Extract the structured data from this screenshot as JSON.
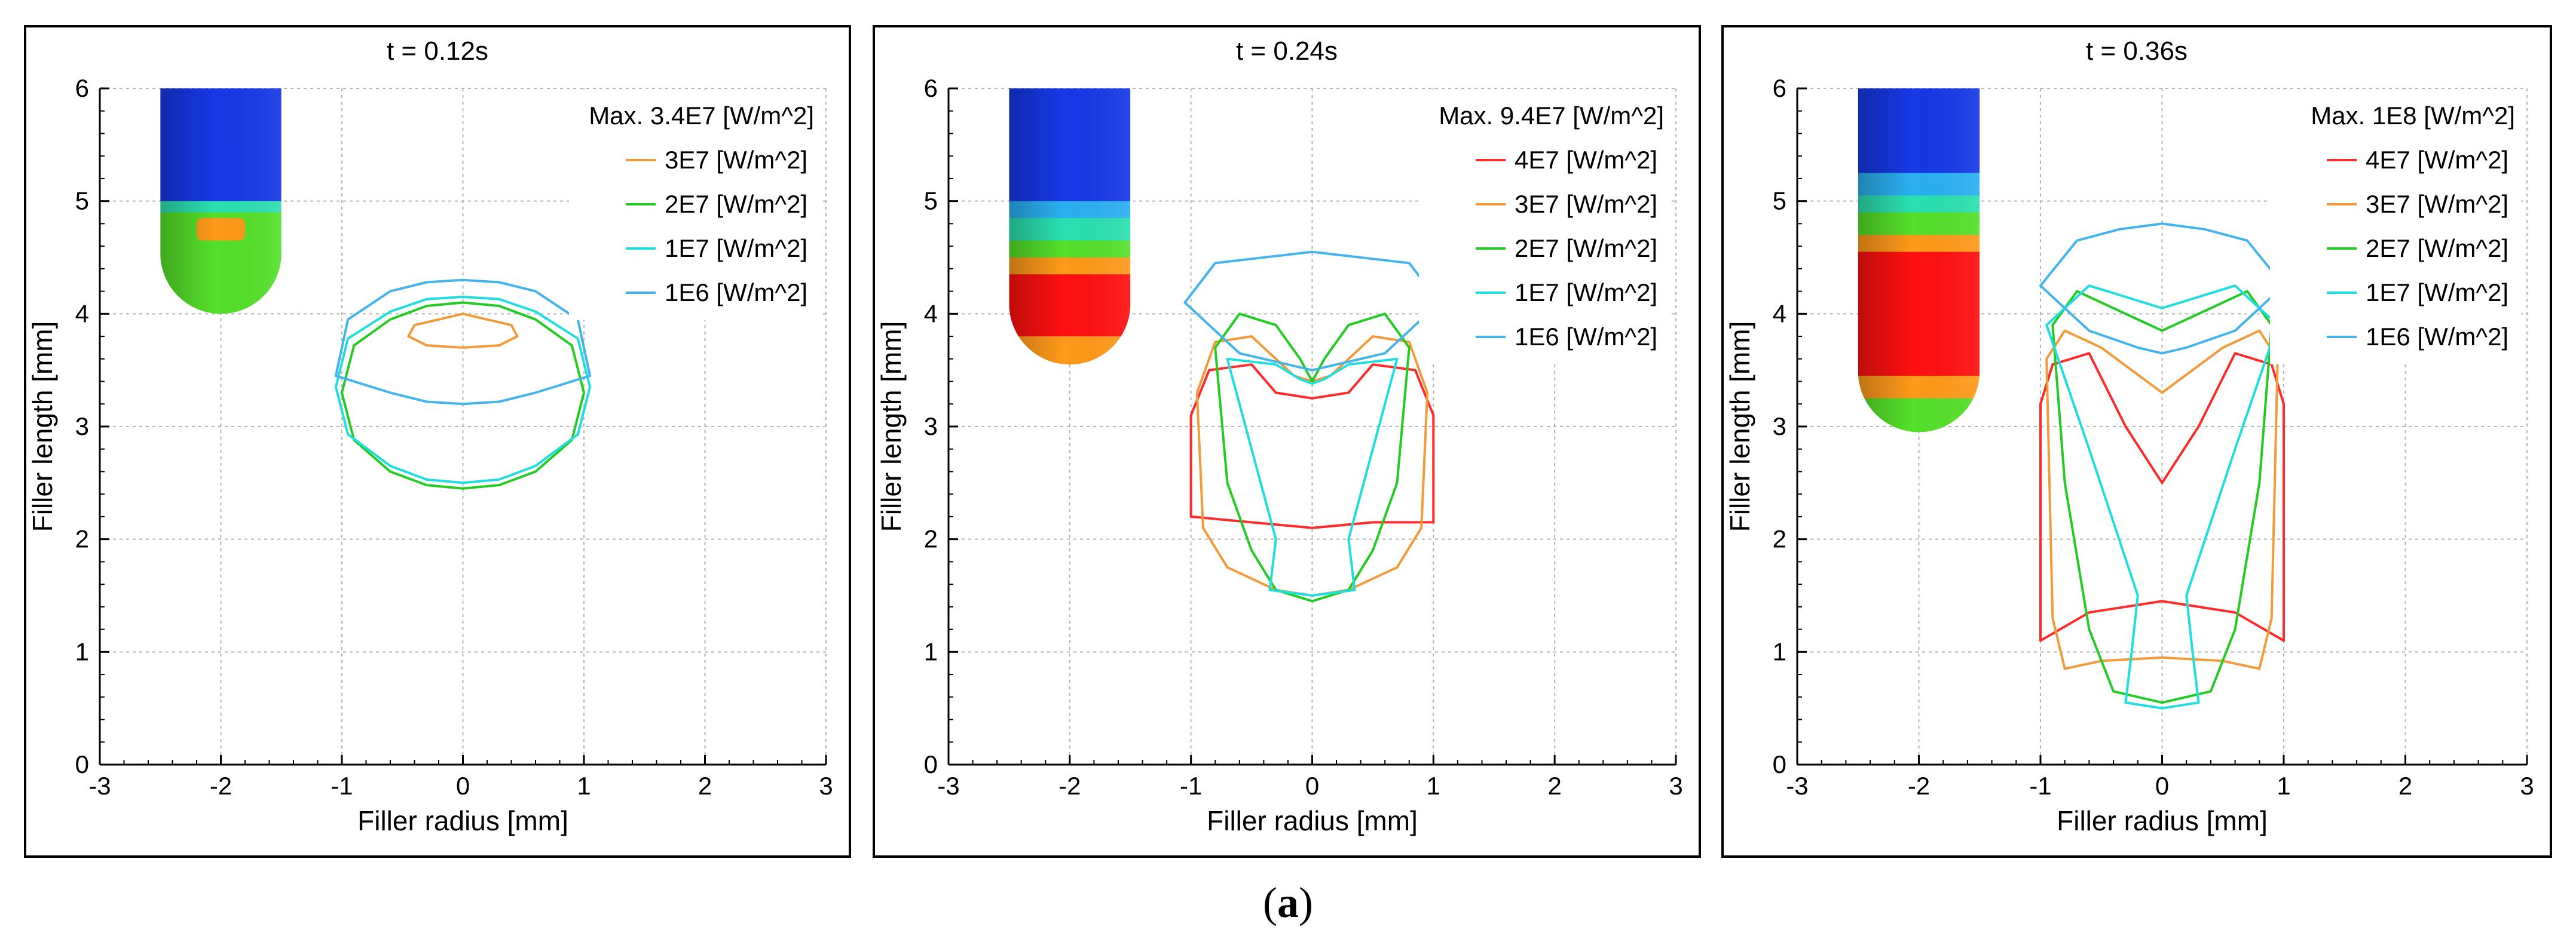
{
  "figure": {
    "caption_open": "(",
    "caption_letter": "a",
    "caption_close": ")"
  },
  "colors": {
    "c4e7": "#ff2a2a",
    "c3e7": "#f39a3a",
    "c2e7": "#22cc22",
    "c1e7": "#20dede",
    "c1e6": "#45b4ec",
    "blue": "#1638e6",
    "green": "#55e02a",
    "orange": "#ff9a1a",
    "red": "#ff1010",
    "teal": "#2ae0b0",
    "cyan": "#2ab0f0",
    "frame": "#000000",
    "grid": "#b4b4b4"
  },
  "chart_data": [
    {
      "type": "line",
      "title": "t = 0.12s",
      "xlabel": "Filler radius [mm]",
      "ylabel": "Filler length [mm]",
      "xlim": [
        -3,
        3
      ],
      "ylim": [
        0,
        6
      ],
      "xticks": [
        -3,
        -2,
        -1,
        0,
        1,
        2,
        3
      ],
      "yticks": [
        0,
        1,
        2,
        3,
        4,
        5,
        6
      ],
      "grid": true,
      "legend_position": "top-right",
      "legend_header": "Max. 3.4E7 [W/m^2]",
      "filler": {
        "x_range": [
          -2.5,
          -1.5
        ],
        "top": 6.0,
        "bottom": 4.0,
        "bands": [
          {
            "color": "blue",
            "y_bottom": 5.0,
            "y_top": 6.0
          },
          {
            "color": "teal",
            "y_bottom": 4.9,
            "y_top": 5.0
          },
          {
            "color": "green",
            "y_bottom": 4.0,
            "y_top": 4.9
          }
        ],
        "hotspots": [
          {
            "color": "orange",
            "x": [
              -2.2,
              -1.8
            ],
            "y_bottom": 4.65,
            "y_top": 4.85
          }
        ]
      },
      "series": [
        {
          "name": "3E7 [W/m^2]",
          "color_key": "c3e7",
          "closed": true,
          "x": [
            -0.45,
            -0.4,
            -0.2,
            0.0,
            0.2,
            0.4,
            0.45,
            0.3,
            0.0,
            -0.3
          ],
          "y": [
            3.8,
            3.9,
            3.95,
            4.0,
            3.95,
            3.9,
            3.8,
            3.72,
            3.7,
            3.72
          ]
        },
        {
          "name": "2E7 [W/m^2]",
          "color_key": "c2e7",
          "closed": true,
          "x": [
            -1.0,
            -0.9,
            -0.6,
            -0.3,
            0.0,
            0.3,
            0.6,
            0.9,
            1.0,
            0.9,
            0.6,
            0.3,
            0.0,
            -0.3,
            -0.6,
            -0.9
          ],
          "y": [
            3.3,
            3.72,
            3.95,
            4.07,
            4.1,
            4.07,
            3.95,
            3.72,
            3.3,
            2.88,
            2.6,
            2.48,
            2.45,
            2.48,
            2.6,
            2.88
          ]
        },
        {
          "name": "1E7 [W/m^2]",
          "color_key": "c1e7",
          "closed": true,
          "x": [
            -1.05,
            -0.95,
            -0.6,
            -0.3,
            0.0,
            0.3,
            0.6,
            0.95,
            1.05,
            0.95,
            0.6,
            0.3,
            0.0,
            -0.3,
            -0.6,
            -0.95
          ],
          "y": [
            3.35,
            3.78,
            4.02,
            4.13,
            4.15,
            4.13,
            4.02,
            3.78,
            3.35,
            2.93,
            2.65,
            2.53,
            2.5,
            2.53,
            2.65,
            2.93
          ]
        },
        {
          "name": "1E6 [W/m^2]",
          "color_key": "c1e6",
          "closed": true,
          "x": [
            -1.05,
            -0.95,
            -0.6,
            -0.3,
            0.0,
            0.3,
            0.6,
            0.95,
            1.05,
            0.6,
            0.3,
            0.0,
            -0.3,
            -0.6
          ],
          "y": [
            3.45,
            3.95,
            4.2,
            4.28,
            4.3,
            4.28,
            4.2,
            3.95,
            3.45,
            3.3,
            3.22,
            3.2,
            3.22,
            3.3
          ]
        }
      ]
    },
    {
      "type": "line",
      "title": "t = 0.24s",
      "xlabel": "Filler radius [mm]",
      "ylabel": "Filler length [mm]",
      "xlim": [
        -3,
        3
      ],
      "ylim": [
        0,
        6
      ],
      "xticks": [
        -3,
        -2,
        -1,
        0,
        1,
        2,
        3
      ],
      "yticks": [
        0,
        1,
        2,
        3,
        4,
        5,
        6
      ],
      "grid": true,
      "legend_position": "top-right",
      "legend_header": "Max. 9.4E7 [W/m^2]",
      "filler": {
        "x_range": [
          -2.5,
          -1.5
        ],
        "top": 6.0,
        "bottom": 3.55,
        "bands": [
          {
            "color": "blue",
            "y_bottom": 5.0,
            "y_top": 6.0
          },
          {
            "color": "cyan",
            "y_bottom": 4.85,
            "y_top": 5.0
          },
          {
            "color": "teal",
            "y_bottom": 4.65,
            "y_top": 4.85
          },
          {
            "color": "green",
            "y_bottom": 4.5,
            "y_top": 4.65
          },
          {
            "color": "orange",
            "y_bottom": 4.35,
            "y_top": 4.5
          },
          {
            "color": "red",
            "y_bottom": 3.8,
            "y_top": 4.35
          },
          {
            "color": "orange",
            "y_bottom": 3.55,
            "y_top": 3.8
          }
        ],
        "hotspots": []
      },
      "series": [
        {
          "name": "4E7 [W/m^2]",
          "color_key": "c4e7",
          "closed": true,
          "x": [
            -1.0,
            -0.85,
            -0.5,
            -0.3,
            0.0,
            0.3,
            0.5,
            0.85,
            1.0,
            1.0,
            0.5,
            0.0,
            -0.5,
            -1.0
          ],
          "y": [
            3.1,
            3.5,
            3.55,
            3.3,
            3.25,
            3.3,
            3.55,
            3.5,
            3.1,
            2.15,
            2.15,
            2.1,
            2.15,
            2.2
          ]
        },
        {
          "name": "3E7 [W/m^2]",
          "color_key": "c3e7",
          "closed": true,
          "x": [
            -0.95,
            -0.8,
            -0.5,
            -0.15,
            0.0,
            0.15,
            0.5,
            0.8,
            0.95,
            0.9,
            0.7,
            0.3,
            0.0,
            -0.3,
            -0.7,
            -0.9
          ],
          "y": [
            3.3,
            3.75,
            3.8,
            3.45,
            3.4,
            3.45,
            3.8,
            3.75,
            3.3,
            2.1,
            1.75,
            1.55,
            1.5,
            1.55,
            1.75,
            2.1
          ]
        },
        {
          "name": "2E7 [W/m^2]",
          "color_key": "c2e7",
          "closed": true,
          "x": [
            -0.8,
            -0.6,
            -0.3,
            -0.1,
            0.0,
            0.1,
            0.3,
            0.6,
            0.8,
            0.7,
            0.5,
            0.3,
            0.0,
            -0.3,
            -0.5,
            -0.7
          ],
          "y": [
            3.7,
            4.0,
            3.9,
            3.6,
            3.4,
            3.6,
            3.9,
            4.0,
            3.7,
            2.5,
            1.9,
            1.55,
            1.45,
            1.55,
            1.9,
            2.5
          ]
        },
        {
          "name": "1E7 [W/m^2]",
          "color_key": "c1e7",
          "closed": true,
          "x": [
            -0.7,
            -0.3,
            -0.1,
            0.0,
            0.1,
            0.3,
            0.7,
            0.5,
            0.3,
            0.35,
            0.0,
            -0.35,
            -0.3,
            -0.5
          ],
          "y": [
            3.6,
            3.55,
            3.42,
            3.38,
            3.42,
            3.55,
            3.6,
            2.8,
            2.0,
            1.55,
            1.5,
            1.55,
            2.0,
            2.8
          ]
        },
        {
          "name": "1E6 [W/m^2]",
          "color_key": "c1e6",
          "closed": true,
          "x": [
            -1.05,
            -0.8,
            -0.4,
            0.0,
            0.4,
            0.8,
            1.05,
            0.6,
            0.2,
            0.0,
            -0.2,
            -0.6
          ],
          "y": [
            4.1,
            4.45,
            4.5,
            4.55,
            4.5,
            4.45,
            4.1,
            3.65,
            3.55,
            3.5,
            3.55,
            3.65
          ]
        }
      ]
    },
    {
      "type": "line",
      "title": "t = 0.36s",
      "xlabel": "Filler radius [mm]",
      "ylabel": "Filler length [mm]",
      "xlim": [
        -3,
        3
      ],
      "ylim": [
        0,
        6
      ],
      "xticks": [
        -3,
        -2,
        -1,
        0,
        1,
        2,
        3
      ],
      "yticks": [
        0,
        1,
        2,
        3,
        4,
        5,
        6
      ],
      "grid": true,
      "legend_position": "top-right",
      "legend_header": "Max. 1E8 [W/m^2]",
      "filler": {
        "x_range": [
          -2.5,
          -1.5
        ],
        "top": 6.0,
        "bottom": 2.95,
        "bands": [
          {
            "color": "blue",
            "y_bottom": 5.25,
            "y_top": 6.0
          },
          {
            "color": "cyan",
            "y_bottom": 5.05,
            "y_top": 5.25
          },
          {
            "color": "teal",
            "y_bottom": 4.9,
            "y_top": 5.05
          },
          {
            "color": "green",
            "y_bottom": 4.7,
            "y_top": 4.9
          },
          {
            "color": "orange",
            "y_bottom": 4.55,
            "y_top": 4.7
          },
          {
            "color": "red",
            "y_bottom": 3.45,
            "y_top": 4.55
          },
          {
            "color": "orange",
            "y_bottom": 3.25,
            "y_top": 3.45
          },
          {
            "color": "green",
            "y_bottom": 2.95,
            "y_top": 3.25
          }
        ],
        "hotspots": []
      },
      "series": [
        {
          "name": "4E7 [W/m^2]",
          "color_key": "c4e7",
          "closed": true,
          "x": [
            -1.0,
            -0.9,
            -0.6,
            -0.3,
            0.0,
            0.3,
            0.6,
            0.9,
            1.0,
            1.0,
            0.6,
            0.0,
            -0.6,
            -1.0
          ],
          "y": [
            3.2,
            3.55,
            3.65,
            3.0,
            2.5,
            3.0,
            3.65,
            3.55,
            3.2,
            1.1,
            1.35,
            1.45,
            1.35,
            1.1
          ]
        },
        {
          "name": "3E7 [W/m^2]",
          "color_key": "c3e7",
          "closed": true,
          "x": [
            -0.95,
            -0.8,
            -0.5,
            0.0,
            0.5,
            0.8,
            0.95,
            0.9,
            0.8,
            0.5,
            0.0,
            -0.5,
            -0.8,
            -0.9
          ],
          "y": [
            3.6,
            3.85,
            3.7,
            3.3,
            3.7,
            3.85,
            3.6,
            1.3,
            0.85,
            0.92,
            0.95,
            0.92,
            0.85,
            1.3
          ]
        },
        {
          "name": "2E7 [W/m^2]",
          "color_key": "c2e7",
          "closed": true,
          "x": [
            -0.9,
            -0.7,
            -0.4,
            0.0,
            0.4,
            0.7,
            0.9,
            0.8,
            0.6,
            0.4,
            0.0,
            -0.4,
            -0.6,
            -0.8
          ],
          "y": [
            3.9,
            4.2,
            4.05,
            3.85,
            4.05,
            4.2,
            3.9,
            2.5,
            1.2,
            0.65,
            0.55,
            0.65,
            1.2,
            2.5
          ]
        },
        {
          "name": "1E7 [W/m^2]",
          "color_key": "c1e7",
          "closed": true,
          "x": [
            -0.95,
            -0.6,
            -0.3,
            0.0,
            0.3,
            0.6,
            0.95,
            0.6,
            0.2,
            0.25,
            0.3,
            0.0,
            -0.3,
            -0.25,
            -0.2,
            -0.6
          ],
          "y": [
            3.9,
            4.25,
            4.15,
            4.05,
            4.15,
            4.25,
            3.9,
            2.8,
            1.5,
            1.0,
            0.55,
            0.5,
            0.55,
            1.0,
            1.5,
            2.8
          ]
        },
        {
          "name": "1E6 [W/m^2]",
          "color_key": "c1e6",
          "closed": true,
          "x": [
            -1.0,
            -0.7,
            -0.35,
            0.0,
            0.35,
            0.7,
            1.0,
            0.6,
            0.2,
            0.0,
            -0.2,
            -0.6
          ],
          "y": [
            4.25,
            4.65,
            4.75,
            4.8,
            4.75,
            4.65,
            4.25,
            3.85,
            3.7,
            3.65,
            3.7,
            3.85
          ]
        }
      ]
    }
  ]
}
